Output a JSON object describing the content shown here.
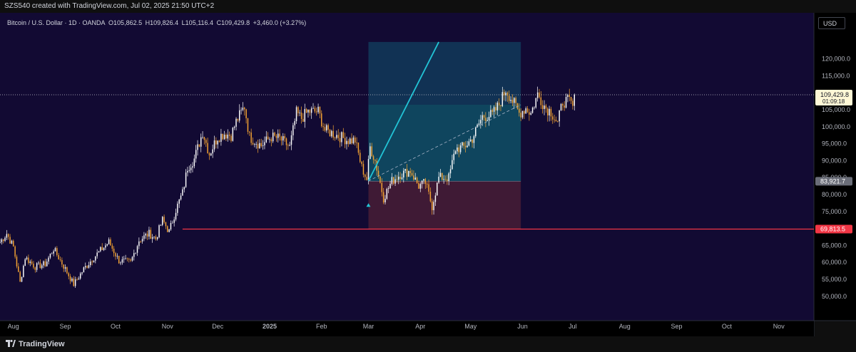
{
  "header": {
    "caption": "SZS540 created with TradingView.com, Jul 02, 2025 21:50 UTC+2"
  },
  "footer": {
    "brand": "TradingView"
  },
  "symbol": {
    "name": "Bitcoin / U.S. Dollar · 1D · OANDA",
    "open": "O105,862.5",
    "high": "H109,826.4",
    "low": "L105,116.4",
    "close": "C109,429.8",
    "change": "+3,460.0 (+3.27%)"
  },
  "currency_button": "USD",
  "colors": {
    "background": "#120a33",
    "up_candle": "#ffffff",
    "down_candle": "#f7a532",
    "support_line": "#f23645",
    "target_zone": "#0f3a55",
    "stop_zone": "#3f1a35",
    "projection_line": "#22c4d6"
  },
  "price_labels": {
    "last_price": "109,429.8",
    "countdown": "01:09:18",
    "entry": "83,921.7",
    "support": "69,813.5"
  },
  "chart_data": {
    "type": "candlestick",
    "title": "Bitcoin / U.S. Dollar · 1D · OANDA",
    "ylim": [
      45000,
      125000
    ],
    "y_ticks": [
      50000,
      55000,
      60000,
      65000,
      70000,
      75000,
      80000,
      85000,
      90000,
      95000,
      100000,
      105000,
      110000,
      115000,
      120000
    ],
    "y_tick_labels": [
      "50,000.0",
      "55,000.0",
      "60,000.0",
      "65,000.0",
      "70,000.0",
      "75,000.0",
      "80,000.0",
      "85,000.0",
      "90,000.0",
      "95,000.0",
      "100,000.0",
      "105,000.0",
      "110,000.0",
      "115,000.0",
      "120,000.0"
    ],
    "x_ticks": [
      "Aug",
      "Sep",
      "Oct",
      "Nov",
      "Dec",
      "2025",
      "Feb",
      "Mar",
      "Apr",
      "May",
      "Jun",
      "Jul",
      "Aug",
      "Sep",
      "Oct",
      "Nov"
    ],
    "x_start": "2024-07-24",
    "x_end": "2025-11-22",
    "bold_ticks": [
      "2025"
    ],
    "close_path": [
      [
        "2024-07-24",
        66000
      ],
      [
        "2024-07-28",
        68500
      ],
      [
        "2024-08-01",
        64500
      ],
      [
        "2024-08-05",
        54000
      ],
      [
        "2024-08-08",
        61500
      ],
      [
        "2024-08-14",
        58700
      ],
      [
        "2024-08-20",
        59500
      ],
      [
        "2024-08-25",
        64000
      ],
      [
        "2024-09-01",
        58000
      ],
      [
        "2024-09-06",
        53500
      ],
      [
        "2024-09-12",
        58000
      ],
      [
        "2024-09-18",
        61500
      ],
      [
        "2024-09-27",
        66000
      ],
      [
        "2024-10-03",
        60500
      ],
      [
        "2024-10-10",
        60000
      ],
      [
        "2024-10-15",
        66500
      ],
      [
        "2024-10-21",
        68500
      ],
      [
        "2024-10-25",
        67000
      ],
      [
        "2024-10-29",
        72500
      ],
      [
        "2024-11-02",
        69000
      ],
      [
        "2024-11-06",
        75500
      ],
      [
        "2024-11-10",
        80500
      ],
      [
        "2024-11-13",
        88000
      ],
      [
        "2024-11-17",
        90500
      ],
      [
        "2024-11-22",
        98500
      ],
      [
        "2024-11-26",
        92000
      ],
      [
        "2024-12-01",
        97000
      ],
      [
        "2024-12-05",
        98000
      ],
      [
        "2024-12-09",
        97500
      ],
      [
        "2024-12-12",
        101500
      ],
      [
        "2024-12-17",
        106000
      ],
      [
        "2024-12-20",
        97000
      ],
      [
        "2024-12-27",
        94500
      ],
      [
        "2025-01-02",
        97000
      ],
      [
        "2025-01-07",
        96500
      ],
      [
        "2025-01-13",
        94000
      ],
      [
        "2025-01-17",
        104000
      ],
      [
        "2025-01-20",
        102500
      ],
      [
        "2025-01-24",
        104500
      ],
      [
        "2025-01-30",
        104500
      ],
      [
        "2025-02-03",
        99000
      ],
      [
        "2025-02-10",
        97500
      ],
      [
        "2025-02-17",
        96000
      ],
      [
        "2025-02-21",
        96000
      ],
      [
        "2025-02-25",
        88000
      ],
      [
        "2025-02-28",
        84500
      ],
      [
        "2025-03-02",
        94000
      ],
      [
        "2025-03-05",
        90000
      ],
      [
        "2025-03-10",
        79000
      ],
      [
        "2025-03-15",
        84000
      ],
      [
        "2025-03-20",
        86000
      ],
      [
        "2025-03-26",
        87000
      ],
      [
        "2025-03-31",
        82500
      ],
      [
        "2025-04-04",
        83500
      ],
      [
        "2025-04-08",
        76500
      ],
      [
        "2025-04-12",
        85000
      ],
      [
        "2025-04-18",
        85000
      ],
      [
        "2025-04-22",
        93500
      ],
      [
        "2025-04-27",
        94000
      ],
      [
        "2025-05-02",
        96500
      ],
      [
        "2025-05-08",
        103000
      ],
      [
        "2025-05-14",
        103500
      ],
      [
        "2025-05-18",
        106500
      ],
      [
        "2025-05-22",
        111000
      ],
      [
        "2025-05-25",
        108500
      ],
      [
        "2025-05-30",
        104000
      ],
      [
        "2025-06-03",
        105500
      ],
      [
        "2025-06-06",
        104000
      ],
      [
        "2025-06-10",
        109500
      ],
      [
        "2025-06-15",
        105500
      ],
      [
        "2025-06-18",
        104500
      ],
      [
        "2025-06-22",
        101000
      ],
      [
        "2025-06-25",
        107500
      ],
      [
        "2025-06-29",
        107500
      ],
      [
        "2025-07-01",
        105900
      ],
      [
        "2025-07-02",
        109429.8
      ]
    ],
    "horizontal_lines": [
      {
        "price": 69813.5,
        "from": "2024-11-10",
        "style": "solid"
      }
    ],
    "last_price_line": {
      "price": 109429.8,
      "style": "dotted"
    },
    "position_tool": {
      "entry": 83921.7,
      "stop": 69813.5,
      "target": 125000,
      "inner_target": 106500,
      "from": "2025-03-01",
      "to": "2025-05-31"
    },
    "projection_line": {
      "from": [
        "2025-03-01",
        84000
      ],
      "to": [
        "2025-04-12",
        125000
      ]
    },
    "trend_line": {
      "from": [
        "2025-03-01",
        84000
      ],
      "to": [
        "2025-05-31",
        106500
      ],
      "style": "dashed"
    },
    "markers": [
      {
        "date": "2025-03-01",
        "price": 77000,
        "shape": "triangle-up"
      }
    ]
  }
}
